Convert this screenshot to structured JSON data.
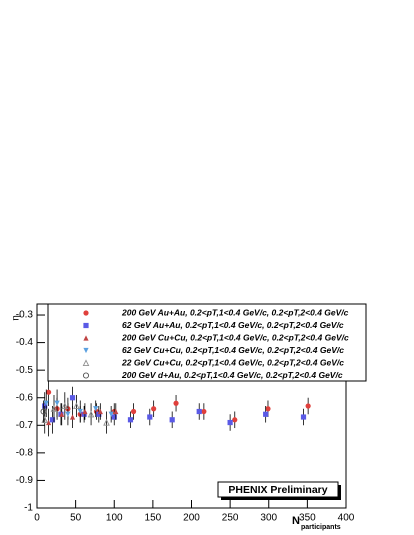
{
  "chart_data": {
    "type": "scatter",
    "y_label": "η",
    "x_label": "N",
    "x_label_sub": "participants",
    "annotation": "PHENIX Preliminary",
    "xlim": [
      0,
      400
    ],
    "xticks": [
      0,
      50,
      100,
      150,
      200,
      250,
      300,
      350,
      400
    ],
    "ylim": [
      -1,
      -0.26
    ],
    "yticks": [
      -1,
      -0.9,
      -0.8,
      -0.7,
      -0.6,
      -0.5,
      -0.4,
      -0.3
    ],
    "series": [
      {
        "name": "200 GeV Au+Au, 0.2<pT,1<0.4 GeV/c, 0.2<pT,2<0.4 GeV/c",
        "color": "#e0403c",
        "marker": "circle",
        "x": [
          351,
          299,
          256,
          216,
          180,
          151,
          125,
          100,
          77,
          56,
          40,
          26,
          15
        ],
        "values": [
          -0.63,
          -0.64,
          -0.68,
          -0.65,
          -0.62,
          -0.64,
          -0.65,
          -0.65,
          -0.65,
          -0.66,
          -0.64,
          -0.64,
          -0.58
        ],
        "errors": [
          0.03,
          0.03,
          0.03,
          0.03,
          0.03,
          0.03,
          0.03,
          0.03,
          0.03,
          0.03,
          0.04,
          0.04,
          0.05
        ]
      },
      {
        "name": "62 GeV Au+Au, 0.2<pT,1<0.4 GeV/c, 0.2<pT,2<0.4 GeV/c",
        "color": "#5a5ae6",
        "marker": "square",
        "x": [
          345,
          296,
          250,
          210,
          175,
          146,
          121,
          100,
          80,
          61,
          46,
          31,
          20,
          10
        ],
        "values": [
          -0.67,
          -0.66,
          -0.69,
          -0.65,
          -0.68,
          -0.67,
          -0.68,
          -0.67,
          -0.66,
          -0.66,
          -0.6,
          -0.66,
          -0.68,
          -0.63
        ],
        "errors": [
          0.03,
          0.03,
          0.03,
          0.03,
          0.03,
          0.03,
          0.03,
          0.03,
          0.03,
          0.03,
          0.04,
          0.04,
          0.05,
          0.05
        ]
      },
      {
        "name": "200 GeV Cu+Cu, 0.2<pT,1<0.4 GeV/c, 0.2<pT,2<0.4 GeV/c",
        "color": "#c04444",
        "marker": "triangle",
        "x": [
          102,
          82,
          62,
          46,
          32,
          15
        ],
        "values": [
          -0.65,
          -0.65,
          -0.65,
          -0.67,
          -0.66,
          -0.69
        ],
        "errors": [
          0.03,
          0.03,
          0.03,
          0.04,
          0.04,
          0.05
        ]
      },
      {
        "name": "62 GeV Cu+Cu, 0.2<pT,1<0.4 GeV/c, 0.2<pT,2<0.4 GeV/c",
        "color": "#5aa0e0",
        "marker": "triangle-down",
        "x": [
          96,
          76,
          56,
          40,
          26,
          12
        ],
        "values": [
          -0.66,
          -0.64,
          -0.65,
          -0.66,
          -0.62,
          -0.62
        ],
        "errors": [
          0.03,
          0.03,
          0.04,
          0.04,
          0.05,
          0.05
        ]
      },
      {
        "name": "22 GeV Cu+Cu, 0.2<pT,1<0.4 GeV/c, 0.2<pT,2<0.4 GeV/c",
        "color": "#909090",
        "marker": "triangle-open",
        "x": [
          90,
          70,
          51,
          36,
          22,
          10
        ],
        "values": [
          -0.69,
          -0.66,
          -0.63,
          -0.63,
          -0.64,
          -0.68
        ],
        "errors": [
          0.04,
          0.04,
          0.04,
          0.05,
          0.05,
          0.05
        ]
      },
      {
        "name": "200 GeV d+Au, 0.2<pT,1<0.4 GeV/c, 0.2<pT,2<0.4 GeV/c",
        "color": "#505050",
        "marker": "circle-open",
        "x": [
          8.5
        ],
        "values": [
          -0.65
        ],
        "errors": [
          0.04
        ]
      }
    ]
  }
}
